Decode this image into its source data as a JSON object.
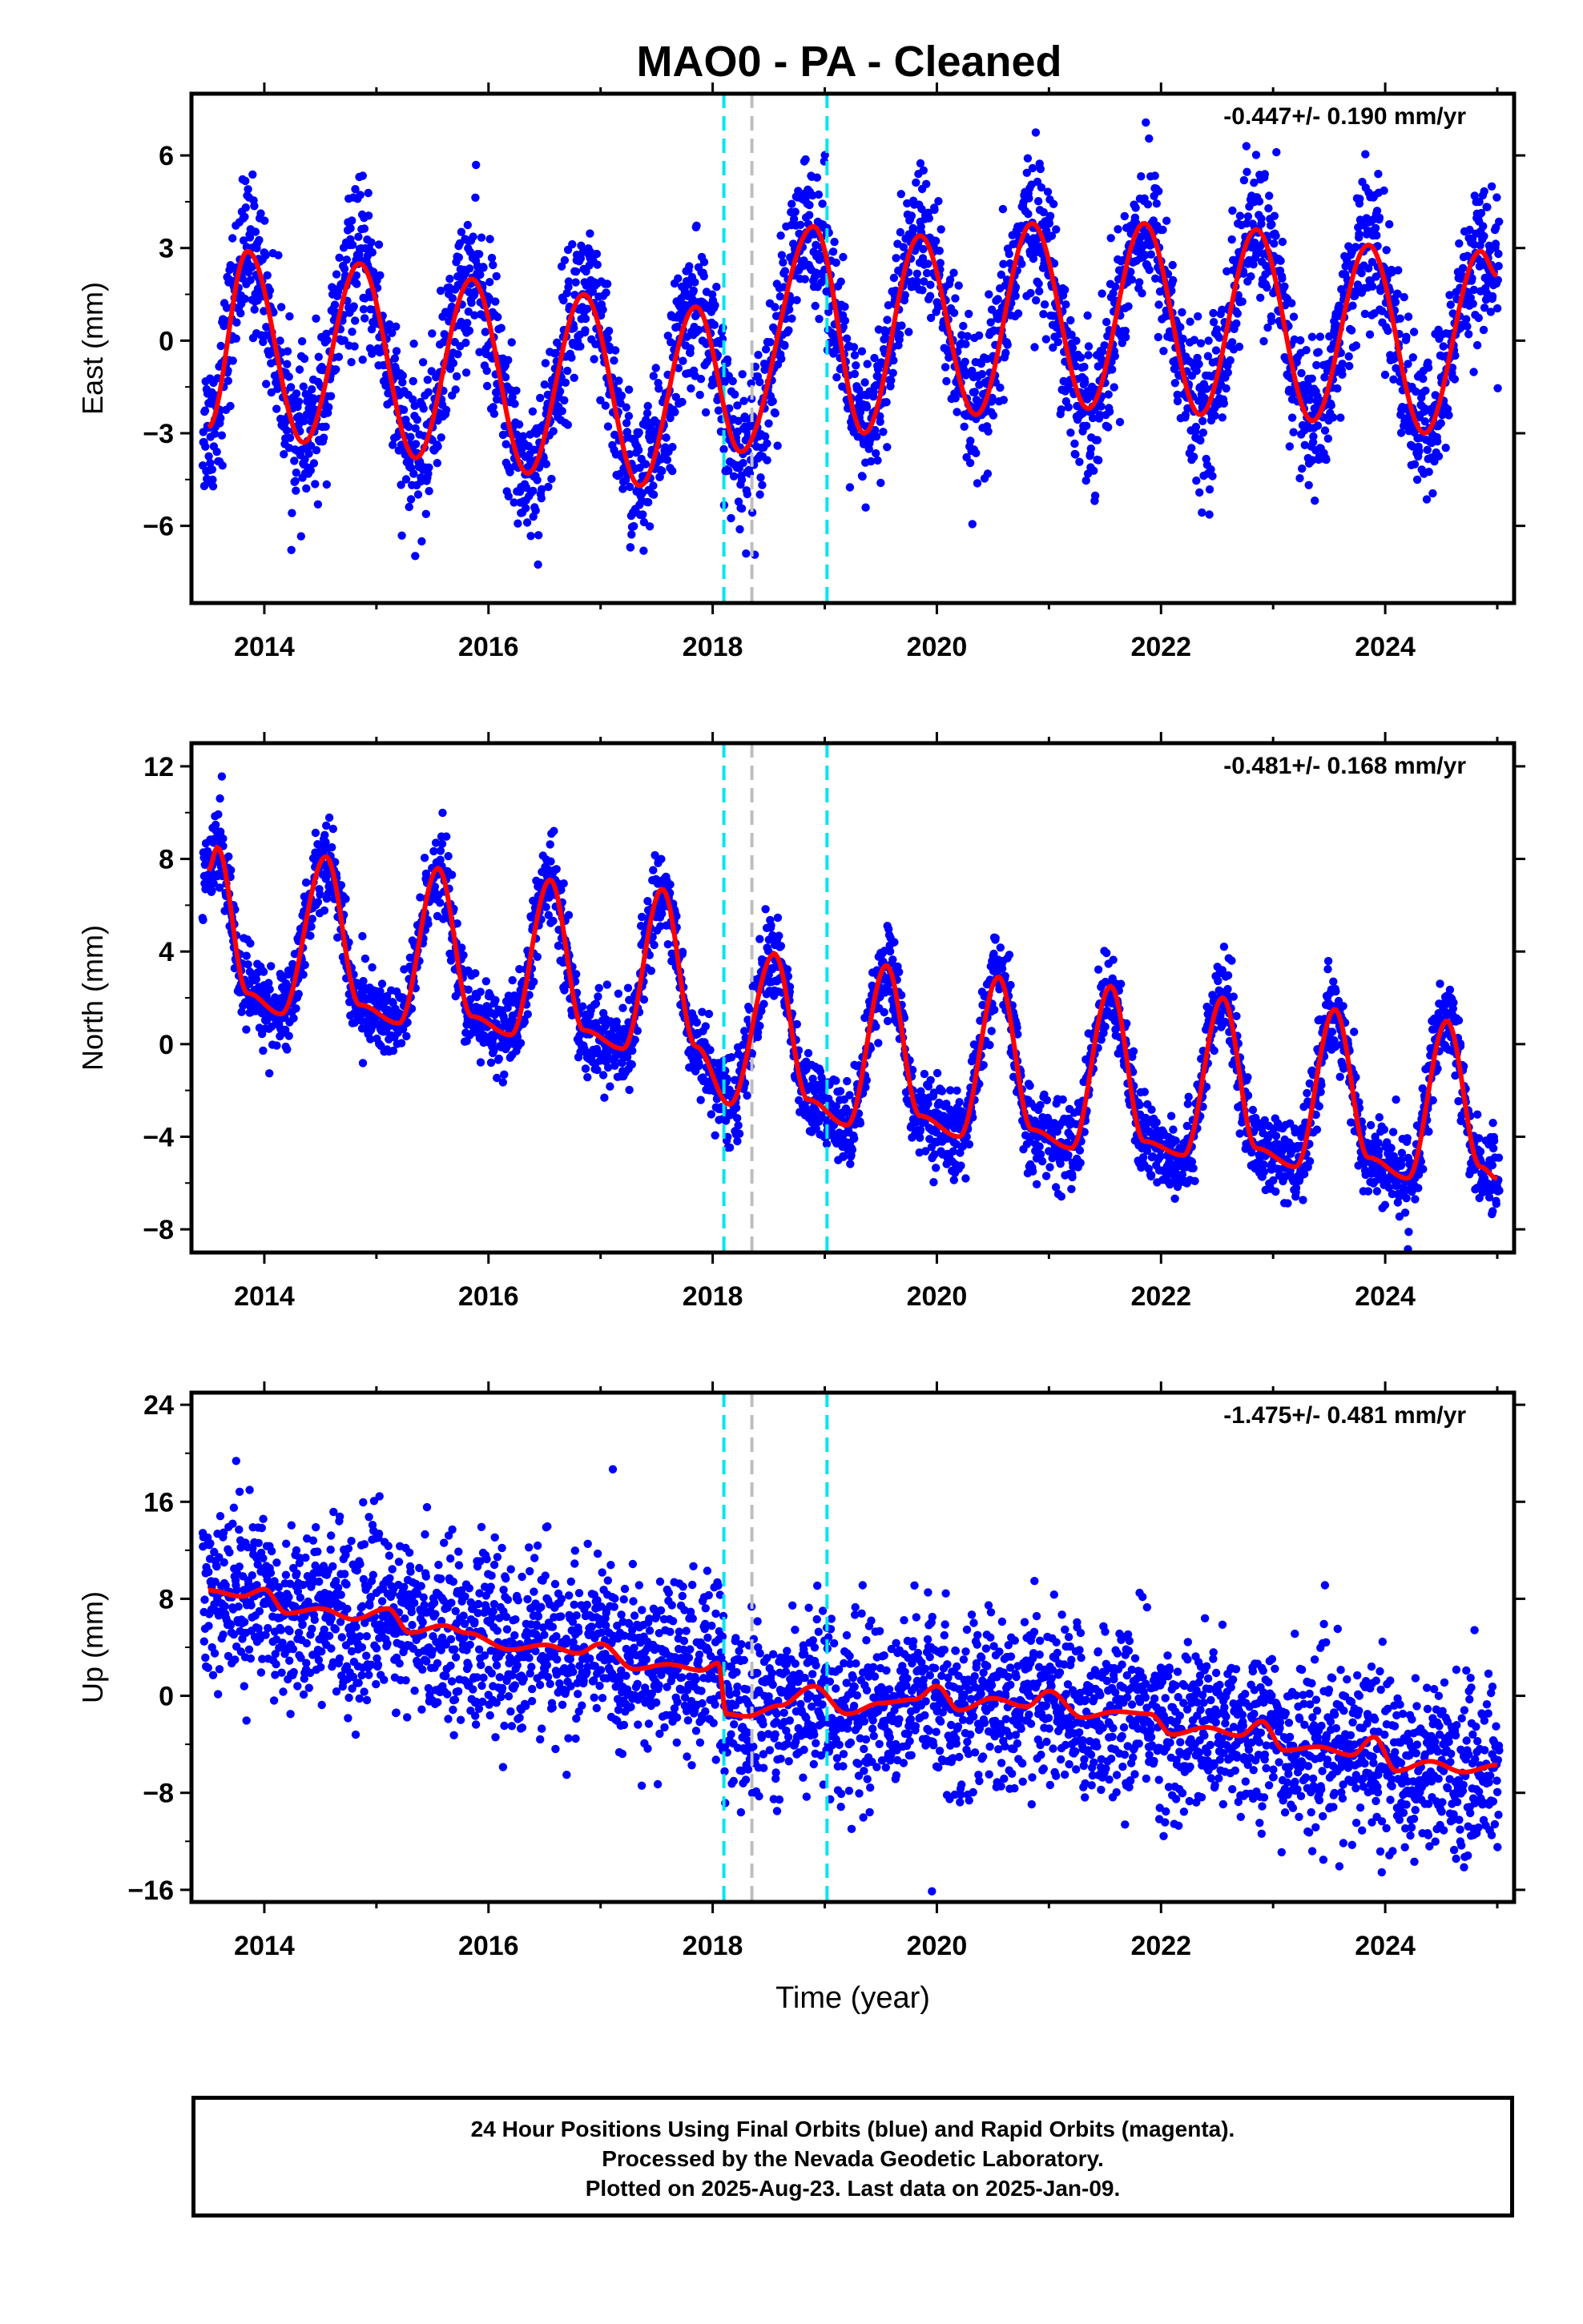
{
  "page": {
    "title": "MAO0  - PA - Cleaned"
  },
  "footer": {
    "line1": "24 Hour Positions Using Final Orbits (blue) and Rapid Orbits (magenta).",
    "line2": "Processed by the Nevada Geodetic Laboratory.",
    "line3": "Plotted on 2025-Aug-23. Last data on 2025-Jan-09."
  },
  "colors": {
    "points": "#0000ff",
    "model": "#ff0000",
    "event_cyan": "#00e5ee",
    "event_gray": "#bebebe"
  },
  "chart_data": [
    {
      "type": "scatter",
      "ylabel": "East (mm)",
      "xlim": [
        2013.35,
        2025.15
      ],
      "ylim": [
        -8.5,
        8
      ],
      "x_ticks": [
        2014,
        2016,
        2018,
        2020,
        2022,
        2024
      ],
      "y_ticks": [
        -6,
        -3,
        0,
        3,
        6
      ],
      "rate_label": "-0.447+/- 0.190 mm/yr",
      "events": [
        {
          "x": 2018.1,
          "color": "cyan"
        },
        {
          "x": 2018.35,
          "color": "gray"
        },
        {
          "x": 2019.02,
          "color": "cyan"
        }
      ],
      "model_curve": {
        "x": [
          2013.5,
          2013.85,
          2014.35,
          2014.85,
          2015.35,
          2015.85,
          2016.35,
          2016.85,
          2017.35,
          2017.85,
          2018.25,
          2018.9,
          2019.35,
          2019.85,
          2020.35,
          2020.85,
          2021.35,
          2021.85,
          2022.35,
          2022.85,
          2023.35,
          2023.85,
          2024.35,
          2024.85,
          2025.0
        ],
        "y": [
          -2.8,
          2.9,
          -3.3,
          2.5,
          -3.8,
          2.0,
          -4.3,
          1.5,
          -4.7,
          1.1,
          -3.6,
          3.7,
          -3.0,
          3.4,
          -2.4,
          3.8,
          -2.2,
          3.8,
          -2.4,
          3.6,
          -2.6,
          3.1,
          -3.0,
          2.9,
          2.1
        ]
      },
      "scatter_noise": 1.2
    },
    {
      "type": "scatter",
      "ylabel": "North (mm)",
      "xlim": [
        2013.35,
        2025.15
      ],
      "ylim": [
        -9,
        13
      ],
      "x_ticks": [
        2014,
        2016,
        2018,
        2020,
        2022,
        2024
      ],
      "y_ticks": [
        -8,
        -4,
        0,
        4,
        8,
        12
      ],
      "rate_label": "-0.481+/- 0.168 mm/yr",
      "events": [
        {
          "x": 2018.1,
          "color": "cyan"
        },
        {
          "x": 2018.35,
          "color": "gray"
        },
        {
          "x": 2019.02,
          "color": "cyan"
        }
      ],
      "model_curve": {
        "x": [
          2013.5,
          2013.58,
          2013.85,
          2014.15,
          2014.55,
          2014.85,
          2015.2,
          2015.55,
          2015.85,
          2016.2,
          2016.55,
          2016.85,
          2017.2,
          2017.55,
          2017.85,
          2018.15,
          2018.55,
          2018.85,
          2019.2,
          2019.55,
          2019.85,
          2020.2,
          2020.55,
          2020.85,
          2021.2,
          2021.55,
          2021.85,
          2022.2,
          2022.55,
          2022.85,
          2023.2,
          2023.55,
          2023.85,
          2024.2,
          2024.55,
          2024.85,
          2025.0
        ],
        "y": [
          7.5,
          8.5,
          2.2,
          1.3,
          8.1,
          1.7,
          0.9,
          7.6,
          1.2,
          0.4,
          7.1,
          0.6,
          -0.2,
          6.7,
          -0.1,
          -2.6,
          3.9,
          -2.4,
          -3.5,
          3.4,
          -3.1,
          -4.0,
          2.9,
          -3.7,
          -4.5,
          2.5,
          -4.2,
          -4.8,
          2.0,
          -4.5,
          -5.3,
          1.5,
          -4.9,
          -5.8,
          1.0,
          -5.3,
          -5.8
        ]
      },
      "scatter_noise": 0.9
    },
    {
      "type": "scatter",
      "ylabel": "Up (mm)",
      "xlabel": "Time (year)",
      "xlim": [
        2013.35,
        2025.15
      ],
      "ylim": [
        -17,
        25
      ],
      "x_ticks": [
        2014,
        2016,
        2018,
        2020,
        2022,
        2024
      ],
      "y_ticks": [
        -16,
        -8,
        0,
        8,
        16,
        24
      ],
      "rate_label": "-1.475+/- 0.481 mm/yr",
      "events": [
        {
          "x": 2018.1,
          "color": "cyan"
        },
        {
          "x": 2018.35,
          "color": "gray"
        },
        {
          "x": 2019.02,
          "color": "cyan"
        }
      ],
      "model_curve": {
        "x": [
          2013.5,
          2013.8,
          2014.0,
          2014.2,
          2014.5,
          2014.8,
          2015.1,
          2015.3,
          2015.6,
          2015.8,
          2016.2,
          2016.5,
          2016.8,
          2017.0,
          2017.3,
          2017.6,
          2017.9,
          2018.05,
          2018.12,
          2018.3,
          2018.6,
          2018.9,
          2019.2,
          2019.5,
          2019.8,
          2020.0,
          2020.2,
          2020.5,
          2020.8,
          2021.0,
          2021.3,
          2021.6,
          2021.9,
          2022.1,
          2022.4,
          2022.7,
          2022.9,
          2023.1,
          2023.4,
          2023.7,
          2023.9,
          2024.1,
          2024.4,
          2024.7,
          2025.0
        ],
        "y": [
          8.7,
          8.2,
          8.8,
          6.8,
          7.2,
          6.3,
          7.2,
          5.2,
          5.8,
          5.2,
          3.8,
          4.2,
          3.5,
          4.3,
          2.2,
          2.6,
          2.1,
          2.7,
          -1.5,
          -1.7,
          -0.8,
          0.8,
          -1.5,
          -0.6,
          -0.3,
          0.8,
          -1.2,
          -0.2,
          -0.9,
          0.4,
          -1.8,
          -1.3,
          -1.5,
          -3.2,
          -2.6,
          -3.3,
          -2.1,
          -4.5,
          -4.2,
          -4.9,
          -3.4,
          -6.2,
          -5.4,
          -6.3,
          -5.7
        ]
      },
      "scatter_noise": 3.5
    }
  ]
}
